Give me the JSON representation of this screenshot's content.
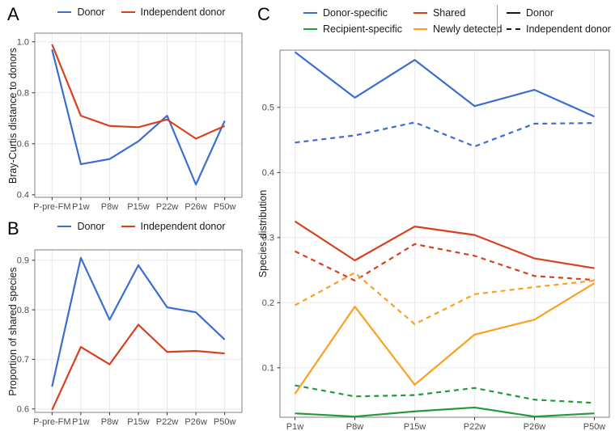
{
  "palette": {
    "blue": "#3A6ED0",
    "red": "#D8411E",
    "green": "#219B39",
    "orange": "#FBA01F",
    "black": "#1a1a1a",
    "grid": "#EBEBEB",
    "border": "#8C8C8C",
    "tick": "#333333",
    "axis_text": "#4D4D4D"
  },
  "chart_data": [
    {
      "panel": "A",
      "panel_label": "A",
      "type": "line",
      "title": "",
      "xlabel": "",
      "ylabel": "Bray-Curtis distance to donors",
      "categories": [
        "P-pre-FM",
        "P1w",
        "P8w",
        "P15w",
        "P22w",
        "P26w",
        "P50w"
      ],
      "yticks": {
        "values": [
          0.4,
          0.6,
          0.8,
          1.0
        ],
        "labels": [
          "0.4",
          "0.6",
          "0.8",
          "1.0"
        ]
      },
      "ylim": [
        0.39,
        1.034
      ],
      "grid": true,
      "legend_position": "top",
      "legend": [
        {
          "label": "Donor",
          "color": "blue",
          "dash": "solid"
        },
        {
          "label": "Independent donor",
          "color": "red",
          "dash": "solid"
        }
      ],
      "series": [
        {
          "name": "Donor",
          "color": "blue",
          "dash": "solid",
          "values": [
            0.97,
            0.52,
            0.54,
            0.61,
            0.71,
            0.44,
            0.69
          ]
        },
        {
          "name": "Independent donor",
          "color": "red",
          "dash": "solid",
          "values": [
            0.99,
            0.71,
            0.67,
            0.665,
            0.695,
            0.62,
            0.67
          ]
        }
      ]
    },
    {
      "panel": "B",
      "panel_label": "B",
      "type": "line",
      "title": "",
      "xlabel": "",
      "ylabel": "Proportion of shared species",
      "categories": [
        "P-pre-FM",
        "P1w",
        "P8w",
        "P15w",
        "P22w",
        "P26w",
        "P50w"
      ],
      "yticks": {
        "values": [
          0.6,
          0.7,
          0.8,
          0.9
        ],
        "labels": [
          "0.6",
          "0.7",
          "0.8",
          "0.9"
        ]
      },
      "ylim": [
        0.593,
        0.921
      ],
      "grid": true,
      "legend_position": "top",
      "legend": [
        {
          "label": "Donor",
          "color": "blue",
          "dash": "solid"
        },
        {
          "label": "Independent donor",
          "color": "red",
          "dash": "solid"
        }
      ],
      "series": [
        {
          "name": "Donor",
          "color": "blue",
          "dash": "solid",
          "values": [
            0.645,
            0.905,
            0.78,
            0.89,
            0.805,
            0.795,
            0.74
          ]
        },
        {
          "name": "Independent donor",
          "color": "red",
          "dash": "solid",
          "values": [
            0.598,
            0.725,
            0.69,
            0.77,
            0.715,
            0.717,
            0.712
          ]
        }
      ]
    },
    {
      "panel": "C",
      "panel_label": "C",
      "type": "line",
      "title": "",
      "xlabel": "",
      "ylabel": "Species distribution",
      "categories": [
        "P1w",
        "P8w",
        "P15w",
        "P22w",
        "P26w",
        "P50w"
      ],
      "yticks": {
        "values": [
          0.1,
          0.2,
          0.3,
          0.4,
          0.5
        ],
        "labels": [
          "0.1",
          "0.2",
          "0.3",
          "0.4",
          "0.5"
        ]
      },
      "ylim": [
        0.024,
        0.588
      ],
      "grid": true,
      "legend_position": "top",
      "legend": [
        {
          "label": "Donor-specific",
          "color": "blue",
          "dash": "solid"
        },
        {
          "label": "Recipient-specific",
          "color": "green",
          "dash": "solid"
        },
        {
          "label": "Shared",
          "color": "red",
          "dash": "solid"
        },
        {
          "label": "Newly detected",
          "color": "orange",
          "dash": "solid"
        }
      ],
      "linetype_legend": [
        {
          "label": "Donor",
          "dash": "solid"
        },
        {
          "label": "Independent donor",
          "dash": "dashed"
        }
      ],
      "series": [
        {
          "name": "Donor-specific (Donor)",
          "group": "Donor-specific",
          "cohort": "Donor",
          "color": "blue",
          "dash": "solid",
          "values": [
            0.585,
            0.515,
            0.573,
            0.502,
            0.527,
            0.486
          ]
        },
        {
          "name": "Donor-specific (Independent donor)",
          "group": "Donor-specific",
          "cohort": "Independent donor",
          "color": "blue",
          "dash": "dashed",
          "values": [
            0.446,
            0.457,
            0.477,
            0.44,
            0.475,
            0.476
          ]
        },
        {
          "name": "Shared (Donor)",
          "group": "Shared",
          "cohort": "Donor",
          "color": "red",
          "dash": "solid",
          "values": [
            0.325,
            0.265,
            0.317,
            0.304,
            0.268,
            0.253
          ]
        },
        {
          "name": "Shared (Independent donor)",
          "group": "Shared",
          "cohort": "Independent donor",
          "color": "red",
          "dash": "dashed",
          "values": [
            0.279,
            0.234,
            0.29,
            0.272,
            0.241,
            0.235
          ]
        },
        {
          "name": "Recipient-specific (Donor)",
          "group": "Recipient-specific",
          "cohort": "Donor",
          "color": "green",
          "dash": "solid",
          "values": [
            0.03,
            0.025,
            0.033,
            0.039,
            0.025,
            0.03
          ]
        },
        {
          "name": "Recipient-specific (Independent donor)",
          "group": "Recipient-specific",
          "cohort": "Independent donor",
          "color": "green",
          "dash": "dashed",
          "values": [
            0.073,
            0.056,
            0.058,
            0.069,
            0.051,
            0.046
          ]
        },
        {
          "name": "Newly detected (Donor)",
          "group": "Newly detected",
          "cohort": "Donor",
          "color": "orange",
          "dash": "solid",
          "values": [
            0.06,
            0.194,
            0.074,
            0.151,
            0.174,
            0.23
          ]
        },
        {
          "name": "Newly detected (Independent donor)",
          "group": "Newly detected",
          "cohort": "Independent donor",
          "color": "orange",
          "dash": "dashed",
          "values": [
            0.196,
            0.246,
            0.167,
            0.213,
            0.224,
            0.234
          ]
        }
      ]
    }
  ]
}
